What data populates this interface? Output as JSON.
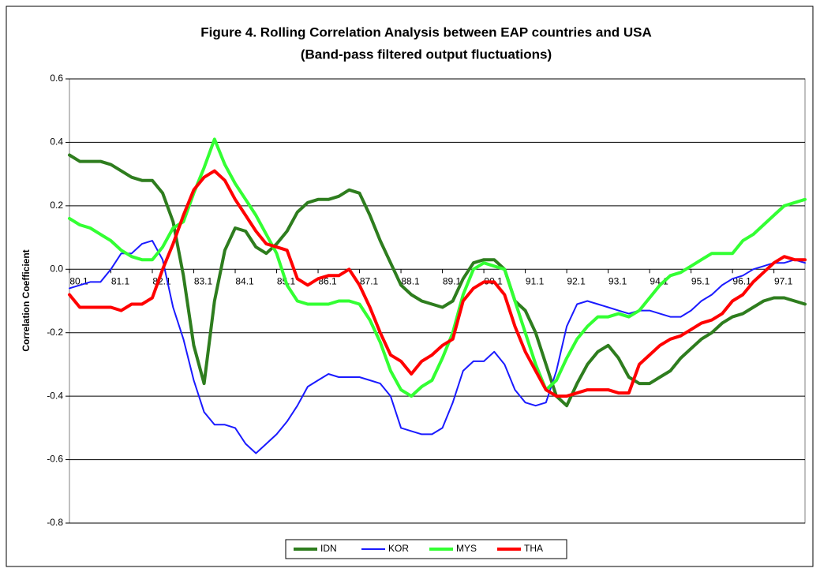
{
  "chart_data": {
    "type": "line",
    "title": "Figure 4. Rolling Correlation Analysis between EAP countries and USA",
    "subtitle": "(Band-pass filtered output fluctuations)",
    "y_label": "Correlation Coefficient",
    "categories": [
      "80.1",
      null,
      null,
      null,
      "81.1",
      null,
      null,
      null,
      "82.1",
      null,
      null,
      null,
      "83.1",
      null,
      null,
      null,
      "84.1",
      null,
      null,
      null,
      "85.1",
      null,
      null,
      null,
      "86.1",
      null,
      null,
      null,
      "87.1",
      null,
      null,
      null,
      "88.1",
      null,
      null,
      null,
      "89.1",
      null,
      null,
      null,
      "90.1",
      null,
      null,
      null,
      "91.1",
      null,
      null,
      null,
      "92.1",
      null,
      null,
      null,
      "93.1",
      null,
      null,
      null,
      "94.1",
      null,
      null,
      null,
      "95.1",
      null,
      null,
      null,
      "96.1",
      null,
      null,
      null,
      "97.1",
      null,
      null,
      null
    ],
    "series": [
      {
        "name": "IDN",
        "color": "#2e7d1e",
        "values": [
          0.36,
          0.34,
          0.34,
          0.34,
          0.33,
          0.31,
          0.29,
          0.28,
          0.28,
          0.24,
          0.15,
          -0.02,
          -0.24,
          -0.36,
          -0.1,
          0.06,
          0.13,
          0.12,
          0.07,
          0.05,
          0.08,
          0.12,
          0.18,
          0.21,
          0.22,
          0.22,
          0.23,
          0.25,
          0.24,
          0.17,
          0.09,
          0.02,
          -0.05,
          -0.08,
          -0.1,
          -0.11,
          -0.12,
          -0.1,
          -0.03,
          0.02,
          0.03,
          0.03,
          0.0,
          -0.1,
          -0.13,
          -0.2,
          -0.3,
          -0.4,
          -0.43,
          -0.36,
          -0.3,
          -0.26,
          -0.24,
          -0.28,
          -0.34,
          -0.36,
          -0.36,
          -0.34,
          -0.32,
          -0.28,
          -0.25,
          -0.22,
          -0.2,
          -0.17,
          -0.15,
          -0.14,
          -0.12,
          -0.1,
          -0.09,
          -0.09,
          -0.1,
          -0.11
        ]
      },
      {
        "name": "KOR",
        "color": "#1a1aff",
        "values": [
          -0.06,
          -0.05,
          -0.04,
          -0.04,
          0.0,
          0.05,
          0.05,
          0.08,
          0.09,
          0.03,
          -0.12,
          -0.22,
          -0.35,
          -0.45,
          -0.49,
          -0.49,
          -0.5,
          -0.55,
          -0.58,
          -0.55,
          -0.52,
          -0.48,
          -0.43,
          -0.37,
          -0.35,
          -0.33,
          -0.34,
          -0.34,
          -0.34,
          -0.35,
          -0.36,
          -0.4,
          -0.5,
          -0.51,
          -0.52,
          -0.52,
          -0.5,
          -0.42,
          -0.32,
          -0.29,
          -0.29,
          -0.26,
          -0.3,
          -0.38,
          -0.42,
          -0.43,
          -0.42,
          -0.32,
          -0.18,
          -0.11,
          -0.1,
          -0.11,
          -0.12,
          -0.13,
          -0.14,
          -0.13,
          -0.13,
          -0.14,
          -0.15,
          -0.15,
          -0.13,
          -0.1,
          -0.08,
          -0.05,
          -0.03,
          -0.02,
          0.0,
          0.01,
          0.02,
          0.02,
          0.03,
          0.02
        ]
      },
      {
        "name": "MYS",
        "color": "#33ff33",
        "values": [
          0.16,
          0.14,
          0.13,
          0.11,
          0.09,
          0.06,
          0.04,
          0.03,
          0.03,
          0.07,
          0.13,
          0.15,
          0.24,
          0.32,
          0.41,
          0.33,
          0.27,
          0.22,
          0.17,
          0.11,
          0.05,
          -0.05,
          -0.1,
          -0.11,
          -0.11,
          -0.11,
          -0.1,
          -0.1,
          -0.11,
          -0.16,
          -0.23,
          -0.32,
          -0.38,
          -0.4,
          -0.37,
          -0.35,
          -0.28,
          -0.2,
          -0.08,
          0.0,
          0.02,
          0.01,
          0.0,
          -0.1,
          -0.2,
          -0.3,
          -0.38,
          -0.35,
          -0.28,
          -0.22,
          -0.18,
          -0.15,
          -0.15,
          -0.14,
          -0.15,
          -0.13,
          -0.09,
          -0.05,
          -0.02,
          -0.01,
          0.01,
          0.03,
          0.05,
          0.05,
          0.05,
          0.09,
          0.11,
          0.14,
          0.17,
          0.2,
          0.21,
          0.22
        ]
      },
      {
        "name": "THA",
        "color": "#ff0000",
        "values": [
          -0.08,
          -0.12,
          -0.12,
          -0.12,
          -0.12,
          -0.13,
          -0.11,
          -0.11,
          -0.09,
          0.0,
          0.08,
          0.17,
          0.25,
          0.29,
          0.31,
          0.28,
          0.22,
          0.17,
          0.12,
          0.08,
          0.07,
          0.06,
          -0.03,
          -0.05,
          -0.03,
          -0.02,
          -0.02,
          0.0,
          -0.05,
          -0.12,
          -0.2,
          -0.27,
          -0.29,
          -0.33,
          -0.29,
          -0.27,
          -0.24,
          -0.22,
          -0.1,
          -0.06,
          -0.04,
          -0.04,
          -0.08,
          -0.18,
          -0.26,
          -0.32,
          -0.38,
          -0.4,
          -0.4,
          -0.39,
          -0.38,
          -0.38,
          -0.38,
          -0.39,
          -0.39,
          -0.3,
          -0.27,
          -0.24,
          -0.22,
          -0.21,
          -0.19,
          -0.17,
          -0.16,
          -0.14,
          -0.1,
          -0.08,
          -0.04,
          -0.01,
          0.02,
          0.04,
          0.03,
          0.03
        ]
      }
    ],
    "ylim": [
      -0.8,
      0.6
    ],
    "yticks": [
      -0.8,
      -0.6,
      -0.4,
      -0.2,
      {
        "value": 0,
        "label": "0.0"
      },
      0.2,
      0.4,
      0.6
    ],
    "grid": true,
    "legend": "bottom"
  }
}
